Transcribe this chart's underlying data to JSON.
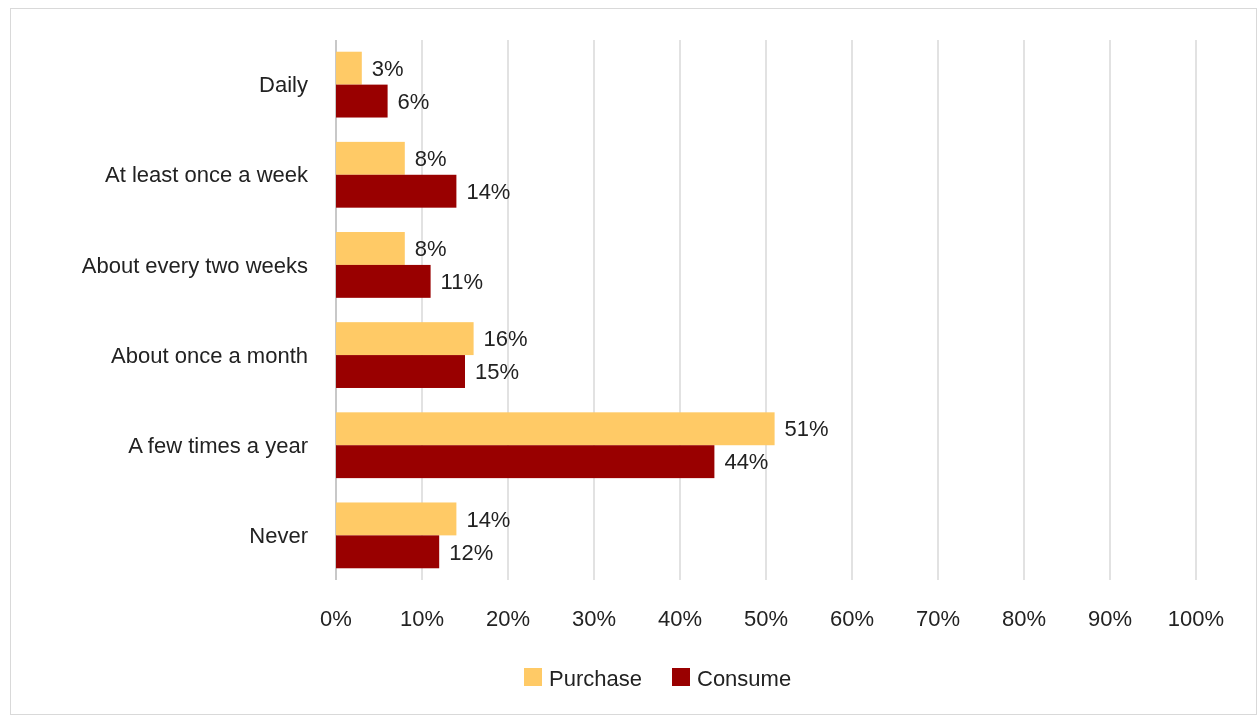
{
  "chart_data": {
    "type": "bar",
    "orientation": "horizontal",
    "categories": [
      "Daily",
      "At least once a week",
      "About every two weeks",
      "About once a month",
      "A few times a year",
      "Never"
    ],
    "series": [
      {
        "name": "Purchase",
        "color": "#ffca66",
        "values": [
          3,
          8,
          8,
          16,
          51,
          14
        ],
        "value_labels": [
          "3%",
          "8%",
          "8%",
          "16%",
          "51%",
          "14%"
        ]
      },
      {
        "name": "Consume",
        "color": "#990000",
        "values": [
          6,
          14,
          11,
          15,
          44,
          12
        ],
        "value_labels": [
          "6%",
          "14%",
          "11%",
          "15%",
          "44%",
          "12%"
        ]
      }
    ],
    "xlim": [
      0,
      100
    ],
    "xticks": [
      {
        "value": 0,
        "label": "0%"
      },
      {
        "value": 10,
        "label": "10%"
      },
      {
        "value": 20,
        "label": "20%"
      },
      {
        "value": 30,
        "label": "30%"
      },
      {
        "value": 40,
        "label": "40%"
      },
      {
        "value": 50,
        "label": "50%"
      },
      {
        "value": 60,
        "label": "60%"
      },
      {
        "value": 70,
        "label": "70%"
      },
      {
        "value": 80,
        "label": "80%"
      },
      {
        "value": 90,
        "label": "90%"
      },
      {
        "value": 100,
        "label": "100%"
      }
    ],
    "grid": "x",
    "legend": "bottom"
  }
}
